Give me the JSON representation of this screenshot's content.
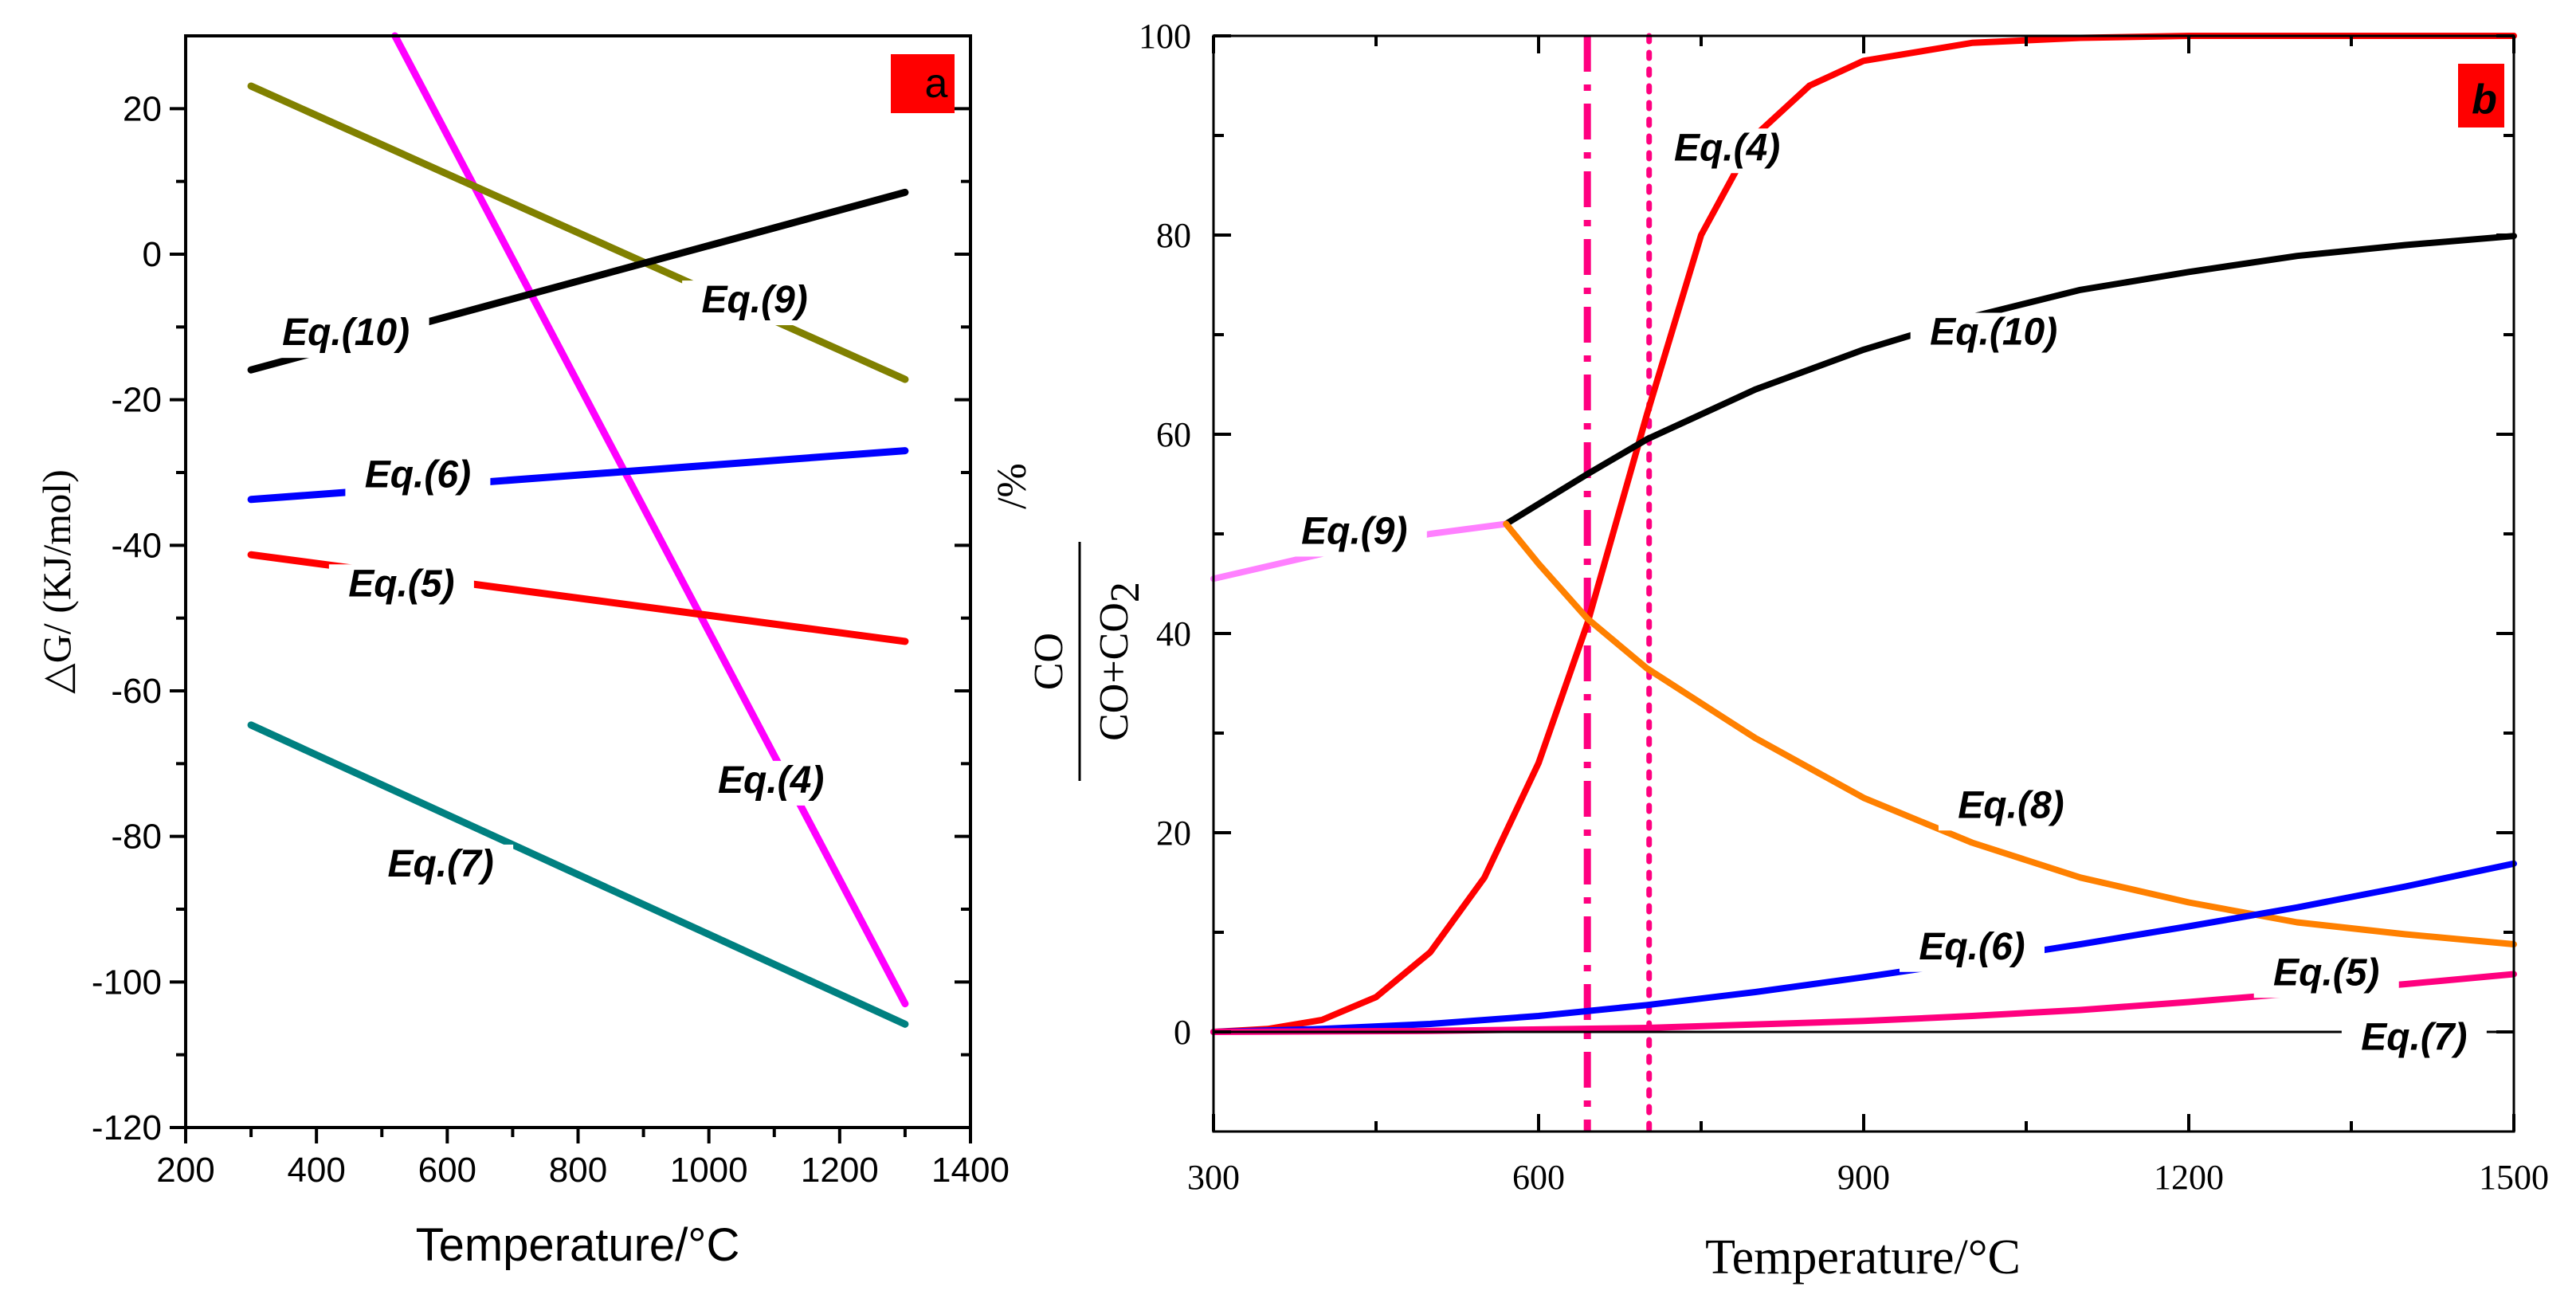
{
  "chart_data": [
    {
      "panel": "a",
      "type": "line",
      "xlabel": "Temperature/°C",
      "ylabel": "△G/ (KJ/mol)",
      "xlim": [
        200,
        1400
      ],
      "ylim": [
        -120,
        30
      ],
      "xticks": [
        200,
        400,
        600,
        800,
        1000,
        1200,
        1400
      ],
      "yticks": [
        -120,
        -100,
        -80,
        -60,
        -40,
        -20,
        0,
        20
      ],
      "xticklabels": [
        "200",
        "400",
        "600",
        "800",
        "1000",
        "1200",
        "1400"
      ],
      "yticklabels": [
        "-120",
        "-100",
        "-80",
        "-60",
        "-40",
        "-20",
        "0",
        "20"
      ],
      "series": [
        {
          "name": "Eq.(4)",
          "color": "#ff00ff",
          "x": [
            520,
            1300
          ],
          "y": [
            30,
            -103
          ]
        },
        {
          "name": "Eq.(5)",
          "color": "#ff0000",
          "x": [
            300,
            1300
          ],
          "y": [
            -41.3,
            -53.2
          ]
        },
        {
          "name": "Eq.(6)",
          "color": "#0000ff",
          "x": [
            300,
            1300
          ],
          "y": [
            -33.7,
            -27.0
          ]
        },
        {
          "name": "Eq.(7)",
          "color": "#008080",
          "x": [
            300,
            1300
          ],
          "y": [
            -64.7,
            -105.8
          ]
        },
        {
          "name": "Eq.(9)",
          "color": "#808000",
          "x": [
            300,
            1300
          ],
          "y": [
            23.1,
            -17.2
          ]
        },
        {
          "name": "Eq.(10)",
          "color": "#000000",
          "x": [
            300,
            1300
          ],
          "y": [
            -15.9,
            8.5
          ]
        }
      ],
      "labels": [
        {
          "text": "Eq.(10)",
          "x": 445,
          "y": -12.5
        },
        {
          "text": "Eq.(9)",
          "x": 1070,
          "y": -8
        },
        {
          "text": "Eq.(6)",
          "x": 555,
          "y": -32
        },
        {
          "text": "Eq.(5)",
          "x": 530,
          "y": -47
        },
        {
          "text": "Eq.(4)",
          "x": 1095,
          "y": -74
        },
        {
          "text": "Eq.(7)",
          "x": 590,
          "y": -85.5
        }
      ],
      "badge": "a",
      "badge_color": "#ff0000"
    },
    {
      "panel": "b",
      "type": "line",
      "xlabel": "Temperature/°C",
      "ylabel_numerator": "CO",
      "ylabel_denominator": "CO+CO",
      "ylabel_subscript": "2",
      "ylabel_unit": "/%",
      "xlim": [
        300,
        1500
      ],
      "ylim": [
        -10,
        100
      ],
      "xticks": [
        300,
        600,
        900,
        1200,
        1500
      ],
      "yticks": [
        0,
        20,
        40,
        60,
        80,
        100
      ],
      "xticklabels": [
        "300",
        "600",
        "900",
        "1200",
        "1500"
      ],
      "yticklabels": [
        "0",
        "20",
        "40",
        "60",
        "80",
        "100"
      ],
      "vlines": [
        {
          "x": 645,
          "style": "dashdot",
          "color": "#ff0080"
        },
        {
          "x": 702,
          "style": "dot",
          "color": "#ff0080"
        }
      ],
      "series": [
        {
          "name": "Eq.(4)",
          "color": "#ff0000",
          "x": [
            300,
            350,
            400,
            450,
            500,
            550,
            600,
            645,
            700,
            750,
            800,
            850,
            900,
            1000,
            1100,
            1200,
            1500
          ],
          "y": [
            0,
            0.3,
            1.2,
            3.5,
            8,
            15.5,
            27,
            41,
            62,
            80,
            90,
            95,
            97.5,
            99.3,
            99.8,
            100,
            100
          ]
        },
        {
          "name": "Eq.(10)",
          "color": "#000000",
          "x": [
            570,
            645,
            700,
            800,
            900,
            1000,
            1100,
            1200,
            1300,
            1400,
            1500
          ],
          "y": [
            51,
            56,
            59.5,
            64.5,
            68.5,
            71.8,
            74.5,
            76.3,
            77.9,
            79.0,
            79.9
          ]
        },
        {
          "name": "Eq.(9)",
          "color": "#ff80ff",
          "x": [
            300,
            400,
            500,
            570
          ],
          "y": [
            45.5,
            48,
            50,
            51
          ]
        },
        {
          "name": "Eq.(8)",
          "color": "#ff8000",
          "x": [
            570,
            600,
            645,
            700,
            800,
            900,
            1000,
            1100,
            1200,
            1300,
            1400,
            1500
          ],
          "y": [
            51,
            47,
            41.5,
            36.5,
            29.5,
            23.5,
            19,
            15.5,
            13,
            11,
            9.8,
            8.8
          ]
        },
        {
          "name": "Eq.(6)",
          "color": "#0000ff",
          "x": [
            300,
            400,
            500,
            600,
            700,
            800,
            900,
            1000,
            1100,
            1200,
            1300,
            1400,
            1500
          ],
          "y": [
            0,
            0.3,
            0.8,
            1.6,
            2.7,
            4,
            5.5,
            7.1,
            8.8,
            10.6,
            12.5,
            14.6,
            16.9
          ]
        },
        {
          "name": "Eq.(5)",
          "color": "#ff007f",
          "x": [
            300,
            500,
            700,
            900,
            1000,
            1100,
            1200,
            1300,
            1400,
            1500
          ],
          "y": [
            0,
            0.1,
            0.4,
            1.1,
            1.6,
            2.2,
            3.0,
            3.9,
            4.8,
            5.8
          ]
        },
        {
          "name": "Eq.(7)",
          "color": "#000000",
          "x": [
            300,
            1500
          ],
          "y": [
            0,
            0
          ]
        }
      ],
      "labels": [
        {
          "text": "Eq.(4)",
          "x": 774,
          "y": 87.5
        },
        {
          "text": "Eq.(10)",
          "x": 1020,
          "y": 69
        },
        {
          "text": "Eq.(9)",
          "x": 430,
          "y": 49
        },
        {
          "text": "Eq.(8)",
          "x": 1036,
          "y": 21.5
        },
        {
          "text": "Eq.(6)",
          "x": 1000,
          "y": 7.3
        },
        {
          "text": "Eq.(5)",
          "x": 1327,
          "y": 4.7
        },
        {
          "text": "Eq.(7)",
          "x": 1408,
          "y": -1.8
        }
      ],
      "badge": "b",
      "badge_color": "#ff0000"
    }
  ]
}
